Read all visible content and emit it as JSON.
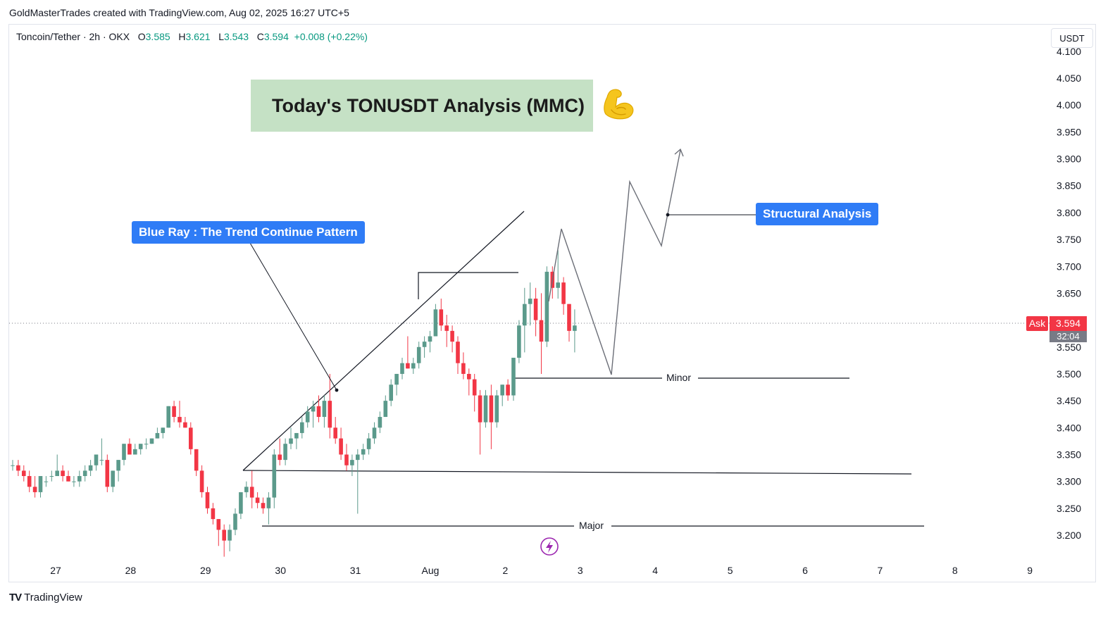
{
  "header": {
    "credit": "GoldMasterTrades created with TradingView.com, Aug 02, 2025 16:27 UTC+5"
  },
  "legend": {
    "symbol": "Toncoin/Tether · 2h · OKX",
    "o_label": "O",
    "o_value": "3.585",
    "h_label": "H",
    "h_value": "3.621",
    "l_label": "L",
    "l_value": "3.543",
    "c_label": "C",
    "c_value": "3.594",
    "change": "+0.008 (+0.22%)"
  },
  "currency": "USDT",
  "title": "Today's TONUSDT Analysis (MMC)",
  "emoji_icon": "flexed-biceps-icon",
  "labels": {
    "blue_ray": "Blue Ray : The Trend Continue Pattern",
    "structural": "Structural Analysis",
    "minor": "Minor",
    "major": "Major"
  },
  "price_marker": {
    "ask_label": "Ask",
    "price": "3.594",
    "countdown": "32:04"
  },
  "footer": {
    "brand": "TradingView"
  },
  "colors": {
    "up": "#5b9a8b",
    "down": "#f23645",
    "label_bg": "#2f7cf6",
    "title_bg": "#c5e1c5",
    "legend_value": "#089981"
  },
  "chart_data": {
    "type": "candlestick",
    "ylim": [
      3.15,
      4.11
    ],
    "y_ticks": [
      "3.200",
      "3.250",
      "3.300",
      "3.350",
      "3.400",
      "3.450",
      "3.500",
      "3.550",
      "3.600",
      "3.650",
      "3.700",
      "3.750",
      "3.800",
      "3.850",
      "3.900",
      "3.950",
      "4.000",
      "4.050",
      "4.100"
    ],
    "x_ticks": [
      "27",
      "28",
      "29",
      "30",
      "31",
      "Aug",
      "2",
      "3",
      "4",
      "5",
      "6",
      "7",
      "8",
      "9"
    ],
    "candles": [
      [
        3.33,
        3.34,
        3.32,
        3.33
      ],
      [
        3.33,
        3.34,
        3.31,
        3.32
      ],
      [
        3.32,
        3.33,
        3.3,
        3.31
      ],
      [
        3.31,
        3.32,
        3.28,
        3.29
      ],
      [
        3.29,
        3.31,
        3.27,
        3.28
      ],
      [
        3.28,
        3.31,
        3.27,
        3.31
      ],
      [
        3.3,
        3.31,
        3.29,
        3.3
      ],
      [
        3.31,
        3.32,
        3.3,
        3.31
      ],
      [
        3.31,
        3.35,
        3.31,
        3.32
      ],
      [
        3.32,
        3.33,
        3.3,
        3.31
      ],
      [
        3.31,
        3.32,
        3.3,
        3.3
      ],
      [
        3.3,
        3.31,
        3.29,
        3.3
      ],
      [
        3.3,
        3.32,
        3.29,
        3.31
      ],
      [
        3.31,
        3.33,
        3.3,
        3.32
      ],
      [
        3.32,
        3.34,
        3.31,
        3.33
      ],
      [
        3.33,
        3.35,
        3.32,
        3.35
      ],
      [
        3.34,
        3.38,
        3.33,
        3.34
      ],
      [
        3.34,
        3.35,
        3.28,
        3.29
      ],
      [
        3.29,
        3.32,
        3.28,
        3.32
      ],
      [
        3.32,
        3.34,
        3.3,
        3.34
      ],
      [
        3.34,
        3.37,
        3.33,
        3.37
      ],
      [
        3.37,
        3.38,
        3.35,
        3.35
      ],
      [
        3.35,
        3.37,
        3.35,
        3.36
      ],
      [
        3.36,
        3.37,
        3.35,
        3.37
      ],
      [
        3.37,
        3.38,
        3.36,
        3.37
      ],
      [
        3.37,
        3.38,
        3.37,
        3.38
      ],
      [
        3.38,
        3.4,
        3.38,
        3.39
      ],
      [
        3.39,
        3.4,
        3.38,
        3.4
      ],
      [
        3.4,
        3.44,
        3.4,
        3.44
      ],
      [
        3.44,
        3.45,
        3.41,
        3.42
      ],
      [
        3.42,
        3.45,
        3.4,
        3.41
      ],
      [
        3.41,
        3.42,
        3.4,
        3.4
      ],
      [
        3.4,
        3.41,
        3.35,
        3.36
      ],
      [
        3.36,
        3.36,
        3.31,
        3.32
      ],
      [
        3.32,
        3.33,
        3.27,
        3.28
      ],
      [
        3.28,
        3.29,
        3.24,
        3.25
      ],
      [
        3.25,
        3.26,
        3.22,
        3.23
      ],
      [
        3.23,
        3.23,
        3.18,
        3.21
      ],
      [
        3.21,
        3.22,
        3.16,
        3.19
      ],
      [
        3.19,
        3.22,
        3.17,
        3.21
      ],
      [
        3.21,
        3.25,
        3.2,
        3.24
      ],
      [
        3.24,
        3.28,
        3.23,
        3.28
      ],
      [
        3.28,
        3.3,
        3.27,
        3.29
      ],
      [
        3.29,
        3.32,
        3.25,
        3.27
      ],
      [
        3.27,
        3.28,
        3.25,
        3.26
      ],
      [
        3.26,
        3.27,
        3.24,
        3.25
      ],
      [
        3.25,
        3.28,
        3.22,
        3.27
      ],
      [
        3.27,
        3.36,
        3.25,
        3.35
      ],
      [
        3.35,
        3.38,
        3.33,
        3.34
      ],
      [
        3.34,
        3.38,
        3.33,
        3.37
      ],
      [
        3.37,
        3.4,
        3.36,
        3.38
      ],
      [
        3.38,
        3.39,
        3.36,
        3.39
      ],
      [
        3.39,
        3.42,
        3.38,
        3.41
      ],
      [
        3.41,
        3.44,
        3.4,
        3.43
      ],
      [
        3.43,
        3.45,
        3.4,
        3.44
      ],
      [
        3.44,
        3.46,
        3.41,
        3.42
      ],
      [
        3.42,
        3.46,
        3.4,
        3.45
      ],
      [
        3.45,
        3.5,
        3.38,
        3.4
      ],
      [
        3.4,
        3.42,
        3.37,
        3.38
      ],
      [
        3.38,
        3.4,
        3.34,
        3.35
      ],
      [
        3.35,
        3.37,
        3.32,
        3.33
      ],
      [
        3.33,
        3.35,
        3.31,
        3.34
      ],
      [
        3.34,
        3.36,
        3.24,
        3.35
      ],
      [
        3.35,
        3.37,
        3.34,
        3.36
      ],
      [
        3.36,
        3.39,
        3.35,
        3.38
      ],
      [
        3.38,
        3.41,
        3.37,
        3.4
      ],
      [
        3.4,
        3.43,
        3.39,
        3.42
      ],
      [
        3.42,
        3.46,
        3.42,
        3.45
      ],
      [
        3.45,
        3.49,
        3.44,
        3.48
      ],
      [
        3.48,
        3.5,
        3.46,
        3.5
      ],
      [
        3.5,
        3.53,
        3.49,
        3.52
      ],
      [
        3.52,
        3.57,
        3.51,
        3.51
      ],
      [
        3.51,
        3.53,
        3.5,
        3.52
      ],
      [
        3.52,
        3.56,
        3.51,
        3.55
      ],
      [
        3.55,
        3.57,
        3.53,
        3.56
      ],
      [
        3.56,
        3.58,
        3.54,
        3.57
      ],
      [
        3.57,
        3.63,
        3.57,
        3.62
      ],
      [
        3.62,
        3.64,
        3.58,
        3.59
      ],
      [
        3.59,
        3.61,
        3.55,
        3.58
      ],
      [
        3.58,
        3.59,
        3.54,
        3.56
      ],
      [
        3.56,
        3.57,
        3.5,
        3.52
      ],
      [
        3.52,
        3.54,
        3.49,
        3.5
      ],
      [
        3.5,
        3.51,
        3.46,
        3.49
      ],
      [
        3.49,
        3.5,
        3.43,
        3.46
      ],
      [
        3.46,
        3.47,
        3.35,
        3.41
      ],
      [
        3.41,
        3.47,
        3.4,
        3.46
      ],
      [
        3.46,
        3.48,
        3.36,
        3.41
      ],
      [
        3.41,
        3.47,
        3.4,
        3.46
      ],
      [
        3.46,
        3.48,
        3.44,
        3.48
      ],
      [
        3.48,
        3.49,
        3.45,
        3.46
      ],
      [
        3.46,
        3.53,
        3.45,
        3.53
      ],
      [
        3.53,
        3.6,
        3.52,
        3.59
      ],
      [
        3.59,
        3.66,
        3.54,
        3.63
      ],
      [
        3.63,
        3.67,
        3.59,
        3.64
      ],
      [
        3.64,
        3.66,
        3.57,
        3.6
      ],
      [
        3.6,
        3.65,
        3.5,
        3.56
      ],
      [
        3.56,
        3.7,
        3.55,
        3.69
      ],
      [
        3.69,
        3.7,
        3.64,
        3.66
      ],
      [
        3.66,
        3.73,
        3.64,
        3.67
      ],
      [
        3.67,
        3.68,
        3.61,
        3.63
      ],
      [
        3.63,
        3.63,
        3.56,
        3.58
      ],
      [
        3.58,
        3.62,
        3.54,
        3.59
      ]
    ]
  }
}
